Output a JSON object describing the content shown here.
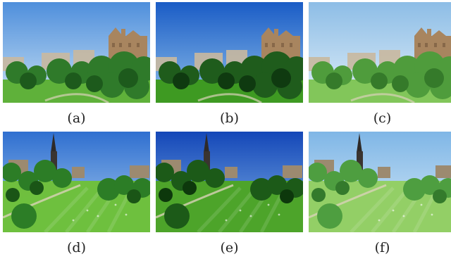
{
  "figure": {
    "panels": [
      {
        "caption": "(a)",
        "scene": "castle",
        "sky_top": "#4f8fdc",
        "sky_bottom": "#c7e0f3",
        "tree": "#2f7a2a",
        "tree_dark": "#1d5a1c",
        "grass": "#5fb13a"
      },
      {
        "caption": "(b)",
        "scene": "castle",
        "sky_top": "#1a5cc6",
        "sky_bottom": "#8fc0ea",
        "tree": "#1f5c1c",
        "tree_dark": "#0f3a10",
        "grass": "#3e9a22"
      },
      {
        "caption": "(c)",
        "scene": "castle",
        "sky_top": "#8dbde6",
        "sky_bottom": "#dfeef8",
        "tree": "#4f9c3c",
        "tree_dark": "#357a2a",
        "grass": "#82c65a"
      },
      {
        "caption": "(d)",
        "scene": "monument",
        "sky_top": "#2f6fd0",
        "sky_bottom": "#a9cdee",
        "tree": "#2c7d26",
        "tree_dark": "#1a5516",
        "grass": "#6fbf3e"
      },
      {
        "caption": "(e)",
        "scene": "monument",
        "sky_top": "#1447b8",
        "sky_bottom": "#7fb2e6",
        "tree": "#1c5a18",
        "tree_dark": "#0d380c",
        "grass": "#4ea42a"
      },
      {
        "caption": "(f)",
        "scene": "monument",
        "sky_top": "#7fb6e6",
        "sky_bottom": "#d6eaf8",
        "tree": "#4e9e40",
        "tree_dark": "#347a2c",
        "grass": "#93cf66"
      }
    ]
  }
}
